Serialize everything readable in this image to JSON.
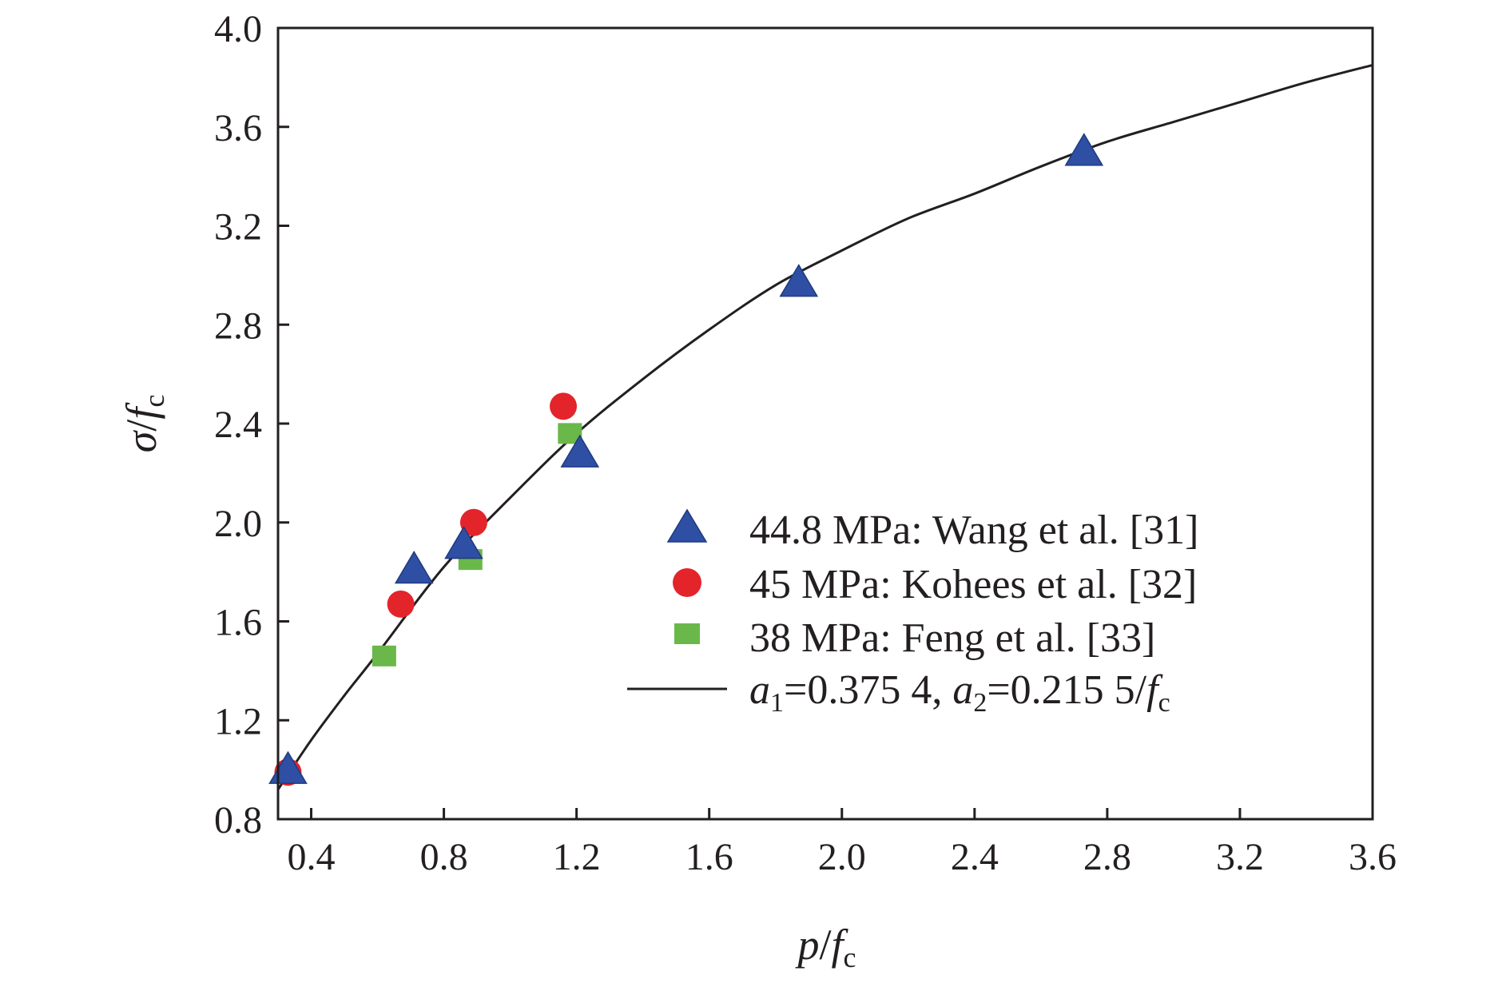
{
  "chart_data": {
    "type": "scatter",
    "x_axis": {
      "label_main": "p",
      "label_sep": "/",
      "label_f": "f",
      "label_sub": "c",
      "range": [
        0.3,
        3.6
      ],
      "ticks": [
        0.4,
        0.8,
        1.2,
        1.6,
        2.0,
        2.4,
        2.8,
        3.2,
        3.6
      ],
      "tick_labels": [
        "0.4",
        "0.8",
        "1.2",
        "1.6",
        "2.0",
        "2.4",
        "2.8",
        "3.2",
        "3.6"
      ]
    },
    "y_axis": {
      "label_main": "σ",
      "label_sep": "/",
      "label_f": "f",
      "label_sub": "c",
      "range": [
        0.8,
        4.0
      ],
      "ticks": [
        0.8,
        1.2,
        1.6,
        2.0,
        2.4,
        2.8,
        3.2,
        3.6,
        4.0
      ],
      "tick_labels": [
        "0.8",
        "1.2",
        "1.6",
        "2.0",
        "2.4",
        "2.8",
        "3.2",
        "3.6",
        "4.0"
      ]
    },
    "grid": false,
    "legend_position": "right-center",
    "series": [
      {
        "name": "44.8 MPa: Wang et al. [31]",
        "marker": "triangle",
        "color": "#2e4fa3",
        "points": [
          [
            0.33,
            1.0
          ],
          [
            0.71,
            1.81
          ],
          [
            0.86,
            1.91
          ],
          [
            1.21,
            2.28
          ],
          [
            1.87,
            2.97
          ],
          [
            2.73,
            3.5
          ]
        ]
      },
      {
        "name": "45 MPa: Kohees et al. [32]",
        "marker": "circle",
        "color": "#e3242b",
        "points": [
          [
            0.33,
            0.99
          ],
          [
            0.67,
            1.67
          ],
          [
            0.89,
            2.0
          ],
          [
            1.16,
            2.47
          ]
        ]
      },
      {
        "name": "38 MPa: Feng et al. [33]",
        "marker": "square",
        "color": "#6ab84a",
        "points": [
          [
            0.62,
            1.46
          ],
          [
            0.88,
            1.85
          ],
          [
            1.18,
            2.36
          ]
        ]
      }
    ],
    "fit_line": {
      "color": "#231f20",
      "legend": {
        "a1_sym": "a",
        "a1_sub": "1",
        "a1_val": "=0.375 4, ",
        "a2_sym": "a",
        "a2_sub": "2",
        "a2_val": "=0.215 5/",
        "f_sym": "f",
        "f_sub": "c"
      },
      "points": [
        [
          0.3,
          0.92
        ],
        [
          0.4,
          1.12
        ],
        [
          0.5,
          1.3
        ],
        [
          0.6,
          1.47
        ],
        [
          0.8,
          1.82
        ],
        [
          1.0,
          2.1
        ],
        [
          1.2,
          2.36
        ],
        [
          1.4,
          2.58
        ],
        [
          1.6,
          2.78
        ],
        [
          1.8,
          2.96
        ],
        [
          2.0,
          3.1
        ],
        [
          2.2,
          3.23
        ],
        [
          2.4,
          3.33
        ],
        [
          2.6,
          3.44
        ],
        [
          2.8,
          3.54
        ],
        [
          3.0,
          3.62
        ],
        [
          3.2,
          3.7
        ],
        [
          3.4,
          3.78
        ],
        [
          3.6,
          3.85
        ]
      ]
    }
  }
}
